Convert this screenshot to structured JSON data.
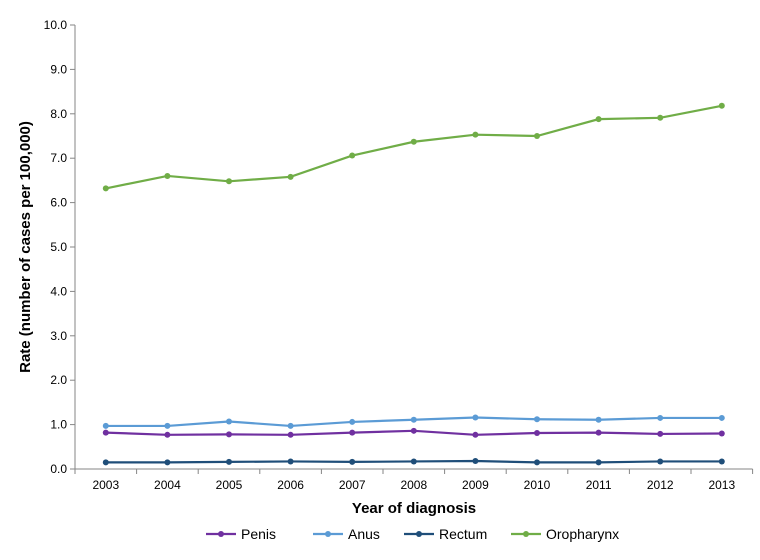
{
  "chart_data": {
    "type": "line",
    "title": "",
    "xlabel": "Year of diagnosis",
    "ylabel": "Rate (number of cases per 100,000)",
    "categories": [
      "2003",
      "2004",
      "2005",
      "2006",
      "2007",
      "2008",
      "2009",
      "2010",
      "2011",
      "2012",
      "2013"
    ],
    "ylim": [
      0,
      10
    ],
    "yticks": [
      "0.0",
      "1.0",
      "2.0",
      "3.0",
      "4.0",
      "5.0",
      "6.0",
      "7.0",
      "8.0",
      "9.0",
      "10.0"
    ],
    "grid": false,
    "legend_position": "bottom",
    "series": [
      {
        "name": "Penis",
        "color": "#7030a0",
        "values": [
          0.82,
          0.77,
          0.78,
          0.77,
          0.82,
          0.86,
          0.77,
          0.81,
          0.82,
          0.79,
          0.8
        ]
      },
      {
        "name": "Anus",
        "color": "#5b9bd5",
        "values": [
          0.97,
          0.97,
          1.07,
          0.97,
          1.06,
          1.11,
          1.16,
          1.12,
          1.11,
          1.15,
          1.15
        ]
      },
      {
        "name": "Rectum",
        "color": "#1f4e79",
        "values": [
          0.15,
          0.15,
          0.16,
          0.17,
          0.16,
          0.17,
          0.18,
          0.15,
          0.15,
          0.17,
          0.17
        ]
      },
      {
        "name": "Oropharynx",
        "color": "#70ad47",
        "values": [
          6.32,
          6.6,
          6.48,
          6.58,
          7.06,
          7.37,
          7.53,
          7.5,
          7.88,
          7.91,
          8.18
        ]
      }
    ]
  }
}
